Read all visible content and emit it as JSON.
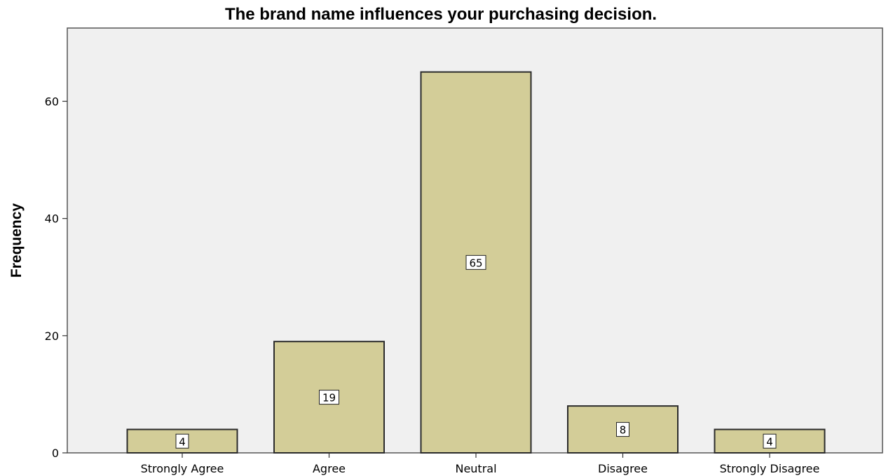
{
  "chart_data": {
    "type": "bar",
    "title": "The brand name influences your purchasing decision.",
    "xlabel": "",
    "ylabel": "Frequency",
    "categories": [
      "Strongly Agree",
      "Agree",
      "Neutral",
      "Disagree",
      "Strongly Disagree"
    ],
    "values": [
      4,
      19,
      65,
      8,
      4
    ],
    "data_labels": [
      "4",
      "19",
      "65",
      "8",
      "4"
    ],
    "ylim": [
      0,
      72.5
    ],
    "yticks": [
      0,
      20,
      40,
      60
    ],
    "grid": false,
    "legend": "none",
    "colors": {
      "bar_fill": "#d3cd98",
      "bar_stroke": "#2b2b2b",
      "plot_background": "#f0f0f0",
      "label_box": "#ffffff"
    }
  }
}
